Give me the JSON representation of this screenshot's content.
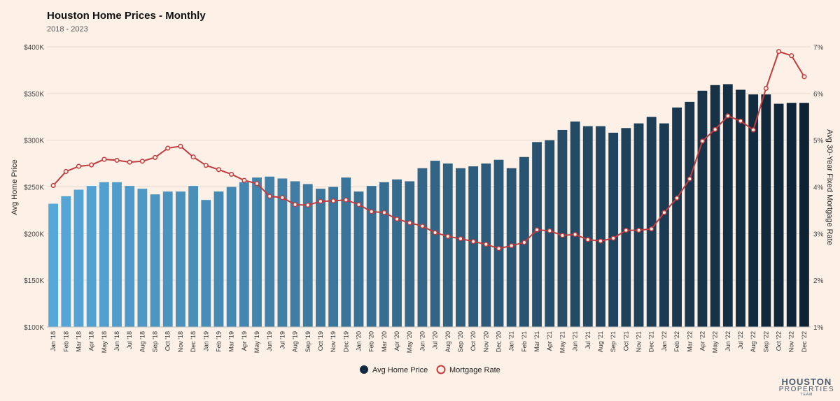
{
  "title": "Houston Home Prices - Monthly",
  "subtitle": "2018 - 2023",
  "logo": {
    "line1": "HOUSTON",
    "line2": "PROPERTIES",
    "line3": "TEAM"
  },
  "colors": {
    "background": "#fdf1e7",
    "bar_start": "#56a8d9",
    "bar_end": "#0e2233",
    "line": "#c23b3f",
    "grid": "#e6d8cc"
  },
  "chart_data": {
    "type": "bar",
    "categories": [
      "Jan '18",
      "Feb '18",
      "Mar '18",
      "Apr '18",
      "May '18",
      "Jun '18",
      "Jul '18",
      "Aug '18",
      "Sep '18",
      "Oct '18",
      "Nov '18",
      "Dec '18",
      "Jan '19",
      "Feb '19",
      "Mar '19",
      "Apr '19",
      "May '19",
      "Jun '19",
      "Jul '19",
      "Aug '19",
      "Sep '19",
      "Oct '19",
      "Nov '19",
      "Dec '19",
      "Jan '20",
      "Feb '20",
      "Mar '20",
      "Apr '20",
      "May '20",
      "Jun '20",
      "Jul '20",
      "Aug '20",
      "Sep '20",
      "Oct '20",
      "Nov '20",
      "Dec '20",
      "Jan '21",
      "Feb '21",
      "Mar '21",
      "Apr '21",
      "May '21",
      "Jun '21",
      "Jul '21",
      "Aug '21",
      "Sep '21",
      "Oct '21",
      "Nov '21",
      "Dec '21",
      "Jan '22",
      "Feb '22",
      "Mar '22",
      "Apr '22",
      "May '22",
      "Jun '22",
      "Jul '22",
      "Aug '22",
      "Sep '22",
      "Oct '22",
      "Nov '22",
      "Dec '22"
    ],
    "series": [
      {
        "name": "Avg Home Price",
        "type": "bar",
        "axis": "left",
        "values": [
          232000,
          240000,
          247000,
          251000,
          255000,
          255000,
          251000,
          248000,
          242000,
          245000,
          245000,
          251000,
          236000,
          245000,
          250000,
          255000,
          260000,
          261000,
          259000,
          256000,
          253000,
          248000,
          250000,
          260000,
          245000,
          251000,
          255000,
          258000,
          256000,
          270000,
          278000,
          275000,
          270000,
          272000,
          275000,
          279000,
          270000,
          282000,
          298000,
          300000,
          311000,
          320000,
          315000,
          315000,
          308000,
          313000,
          318000,
          325000,
          318000,
          335000,
          341000,
          353000,
          359000,
          360000,
          354000,
          349000,
          349000,
          339000,
          340000,
          340000
        ]
      },
      {
        "name": "Mortgage Rate",
        "type": "line",
        "axis": "right",
        "values": [
          4.03,
          4.33,
          4.44,
          4.47,
          4.59,
          4.57,
          4.53,
          4.55,
          4.63,
          4.83,
          4.87,
          4.64,
          4.46,
          4.37,
          4.27,
          4.14,
          4.07,
          3.8,
          3.77,
          3.62,
          3.61,
          3.69,
          3.7,
          3.72,
          3.62,
          3.47,
          3.45,
          3.31,
          3.23,
          3.16,
          3.02,
          2.94,
          2.89,
          2.83,
          2.77,
          2.68,
          2.74,
          2.81,
          3.08,
          3.06,
          2.96,
          2.98,
          2.87,
          2.84,
          2.9,
          3.07,
          3.07,
          3.1,
          3.45,
          3.76,
          4.17,
          4.98,
          5.23,
          5.52,
          5.41,
          5.22,
          6.11,
          6.9,
          6.81,
          6.36
        ]
      }
    ],
    "y_left": {
      "label": "Avg Home Price",
      "range": [
        100000,
        400000
      ],
      "ticks": [
        100000,
        150000,
        200000,
        250000,
        300000,
        350000,
        400000
      ],
      "tick_labels": [
        "$100K",
        "$150K",
        "$200K",
        "$250K",
        "$300K",
        "$350K",
        "$400K"
      ]
    },
    "y_right": {
      "label": "Avg 30-Year Fixed Mortgage Rate",
      "range": [
        1,
        7
      ],
      "ticks": [
        1,
        2,
        3,
        4,
        5,
        6,
        7
      ],
      "tick_labels": [
        "1%",
        "2%",
        "3%",
        "4%",
        "5%",
        "6%",
        "7%"
      ]
    },
    "grid": true,
    "legend_position": "bottom-center"
  }
}
